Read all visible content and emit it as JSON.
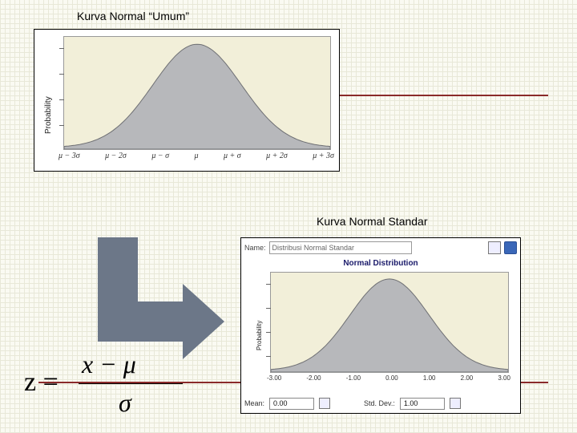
{
  "titles": {
    "top": "Kurva Normal “Umum”",
    "bottom": "Kurva Normal Standar"
  },
  "chart1": {
    "type": "area",
    "ylabel": "Probability",
    "xlabels": [
      "μ − 3σ",
      "μ − 2σ",
      "μ − σ",
      "μ",
      "μ + σ",
      "μ + 2σ",
      "μ + 3σ"
    ],
    "curve_fill": "#b7b8bb",
    "curve_stroke": "#6e6f73",
    "background": "#f2efd9",
    "xrange": [
      -3,
      3
    ]
  },
  "chart2": {
    "type": "area",
    "title": "Normal Distribution",
    "toolbar": {
      "name_label": "Name:",
      "name_value": "Distribusi Normal Standar"
    },
    "ylabel": "Probability",
    "xlabels": [
      "-3.00",
      "-2.00",
      "-1.00",
      "0.00",
      "1.00",
      "2.00",
      "3.00"
    ],
    "curve_fill": "#b7b8bb",
    "curve_stroke": "#6e6f73",
    "background": "#f2efd9",
    "xrange": [
      -3,
      3
    ],
    "footer": {
      "mean_label": "Mean:",
      "mean_value": "0.00",
      "sd_label": "Std. Dev.:",
      "sd_value": "1.00"
    }
  },
  "formula": {
    "lhs": "z =",
    "num": "x − μ",
    "den": "σ"
  },
  "colors": {
    "rule": "#8a2a2a",
    "arrow": "#6c7788"
  }
}
